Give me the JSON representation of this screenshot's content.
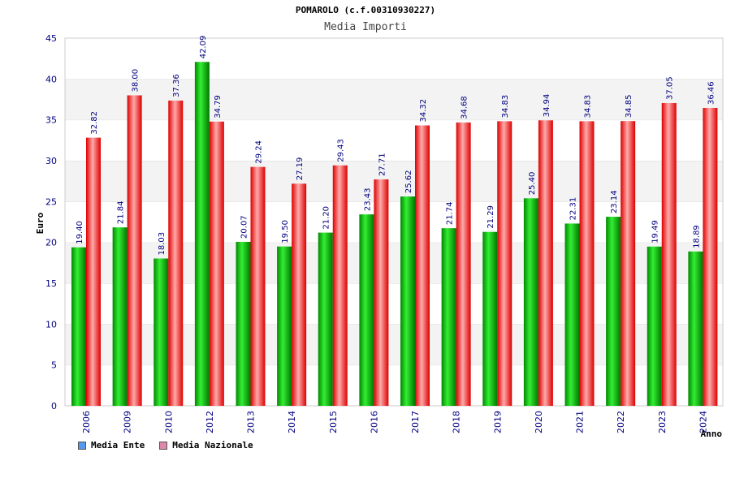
{
  "chart_data": {
    "type": "bar",
    "title": "POMAROLO (c.f.00310930227)",
    "subtitle": "Media Importi",
    "xlabel": "Anno",
    "ylabel": "Euro",
    "ylim": [
      0,
      45
    ],
    "yticks": [
      0,
      5,
      10,
      15,
      20,
      25,
      30,
      35,
      40,
      45
    ],
    "grid": true,
    "categories": [
      "2006",
      "2009",
      "2010",
      "2012",
      "2013",
      "2014",
      "2015",
      "2016",
      "2017",
      "2018",
      "2019",
      "2020",
      "2021",
      "2022",
      "2023",
      "2024"
    ],
    "series": [
      {
        "name": "Media Ente",
        "color": "#00aa00",
        "legend_color": "#5599ee",
        "values": [
          19.4,
          21.84,
          18.03,
          42.09,
          20.07,
          19.5,
          21.2,
          23.43,
          25.62,
          21.74,
          21.29,
          25.4,
          22.31,
          23.14,
          19.49,
          18.89
        ],
        "labels": [
          "19.40",
          "21.84",
          "18.03",
          "42.09",
          "20.07",
          "19.50",
          "21.20",
          "23.43",
          "25.62",
          "21.74",
          "21.29",
          "25.40",
          "22.31",
          "23.14",
          "19.49",
          "18.89"
        ]
      },
      {
        "name": "Media Nazionale",
        "color": "#ee1111",
        "legend_color": "#dd88aa",
        "values": [
          32.82,
          38.0,
          37.36,
          34.79,
          29.24,
          27.19,
          29.43,
          27.71,
          34.32,
          34.68,
          34.83,
          34.94,
          34.83,
          34.85,
          37.05,
          36.46
        ],
        "labels": [
          "32.82",
          "38.00",
          "37.36",
          "34.79",
          "29.24",
          "27.19",
          "29.43",
          "27.71",
          "34.32",
          "34.68",
          "34.83",
          "34.94",
          "34.83",
          "34.85",
          "37.05",
          "36.46"
        ]
      }
    ],
    "legend_position": "bottom-left"
  }
}
